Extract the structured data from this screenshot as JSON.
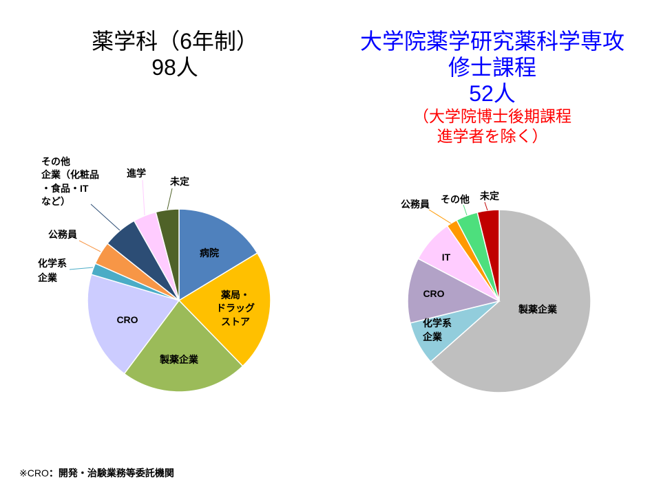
{
  "footnote": {
    "mark": "※CRO",
    "text": "：開発・治験業務等委託機関"
  },
  "chart_data": [
    {
      "type": "pie",
      "title": [
        "薬学科（6年制）"
      ],
      "total_label": "98人",
      "slices": [
        {
          "label": [
            "病院"
          ],
          "value": 16,
          "color": "#4F81BD"
        },
        {
          "label": [
            "薬局・",
            "ドラッグ",
            "ストア"
          ],
          "value": 21,
          "color": "#FFC000"
        },
        {
          "label": [
            "製薬企業"
          ],
          "value": 22,
          "color": "#9BBB59"
        },
        {
          "label": [
            "CRO"
          ],
          "value": 19,
          "color": "#CCCCFF"
        },
        {
          "label": [
            "化学系",
            "企業"
          ],
          "value": 2,
          "color": "#4BACC6"
        },
        {
          "label": [
            "公務員"
          ],
          "value": 4,
          "color": "#F79646"
        },
        {
          "label": [
            "その他",
            "企業（化粧品",
            "・食品・IT",
            "など）"
          ],
          "value": 6,
          "color": "#2C4D75"
        },
        {
          "label": [
            "進学"
          ],
          "value": 4,
          "color": "#FFCCFF"
        },
        {
          "label": [
            "未定"
          ],
          "value": 4,
          "color": "#4F6228"
        }
      ]
    },
    {
      "type": "pie",
      "title": [
        "大学院薬学研究薬科学専攻",
        "修士課程"
      ],
      "total_label": "52人",
      "note": [
        "（大学院博士後期課程",
        "進学者を除く）"
      ],
      "title_color": "#0000FF",
      "note_color": "#FF0000",
      "slices": [
        {
          "label": [
            "製薬企業"
          ],
          "value": 33,
          "color": "#BFBFBF"
        },
        {
          "label": [
            "化学系",
            "企業"
          ],
          "value": 4,
          "color": "#92CDDC"
        },
        {
          "label": [
            "CRO"
          ],
          "value": 6,
          "color": "#B2A2C7"
        },
        {
          "label": [
            "IT"
          ],
          "value": 4,
          "color": "#FFCCFF"
        },
        {
          "label": [
            "公務員"
          ],
          "value": 1,
          "color": "#FF9900"
        },
        {
          "label": [
            "その他"
          ],
          "value": 2,
          "color": "#4DDF7D"
        },
        {
          "label": [
            "未定"
          ],
          "value": 2,
          "color": "#C00000"
        }
      ]
    }
  ]
}
